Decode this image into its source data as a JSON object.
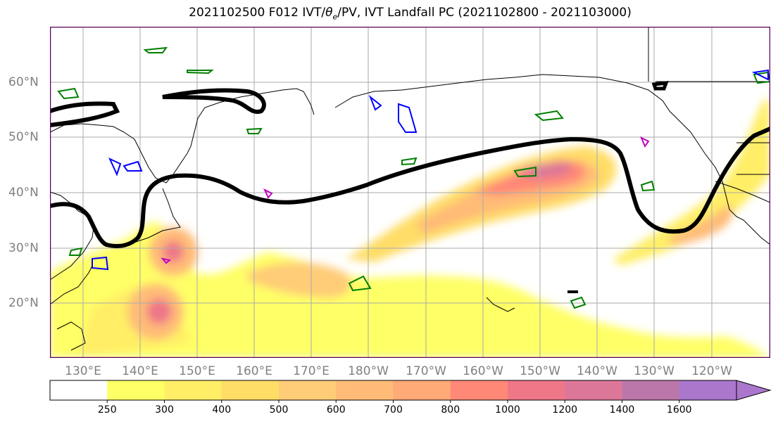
{
  "title": "2021102500 F012 IVT/θe/PV, IVT Landfall PC (2021102800 - 2021103000)",
  "title_parts": {
    "prefix": "2021102500 F012 IVT/",
    "theta": "θ",
    "theta_sub": "e",
    "suffix": "/PV, IVT Landfall PC (2021102800 - 2021103000)"
  },
  "map": {
    "lat_labels": [
      "60°N",
      "50°N",
      "40°N",
      "30°N",
      "20°N"
    ],
    "lon_labels": [
      "130°E",
      "140°E",
      "150°E",
      "160°E",
      "170°E",
      "180°W",
      "170°W",
      "160°W",
      "150°W",
      "140°W",
      "130°W",
      "120°W"
    ],
    "gridlines": true,
    "colors": {
      "coastline": "#000000",
      "gridline": "#aaaaaa",
      "theta_e_contour": "#008000",
      "pv_contour": "#0000ff",
      "pv_contour_alt": "#c000c0",
      "landfall_contour": "#000000",
      "frame": "#5a005a"
    }
  },
  "colorbar": {
    "levels": [
      "250",
      "300",
      "400",
      "500",
      "600",
      "700",
      "800",
      "1000",
      "1200",
      "1400",
      "1600"
    ],
    "colors": [
      "#ffffff",
      "#ffff66",
      "#ffee66",
      "#ffdd66",
      "#ffcc77",
      "#ffbb77",
      "#ffaa77",
      "#ff8877",
      "#ee7788",
      "#dd7799",
      "#bb77aa",
      "#aa77cc"
    ],
    "extend": "max"
  }
}
